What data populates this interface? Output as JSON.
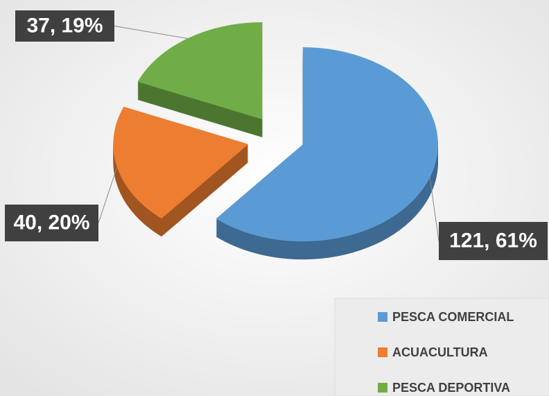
{
  "chart_data": {
    "type": "pie",
    "categories": [
      "PESCA COMERCIAL",
      "ACUACULTURA",
      "PESCA DEPORTIVA"
    ],
    "values": [
      121,
      40,
      37
    ],
    "value_labels": [
      "121, 61%",
      "40, 20%",
      "37, 19%"
    ],
    "colors": [
      "#5b9bd5",
      "#ed7d31",
      "#70ad47"
    ],
    "legend": "bottom-right"
  }
}
